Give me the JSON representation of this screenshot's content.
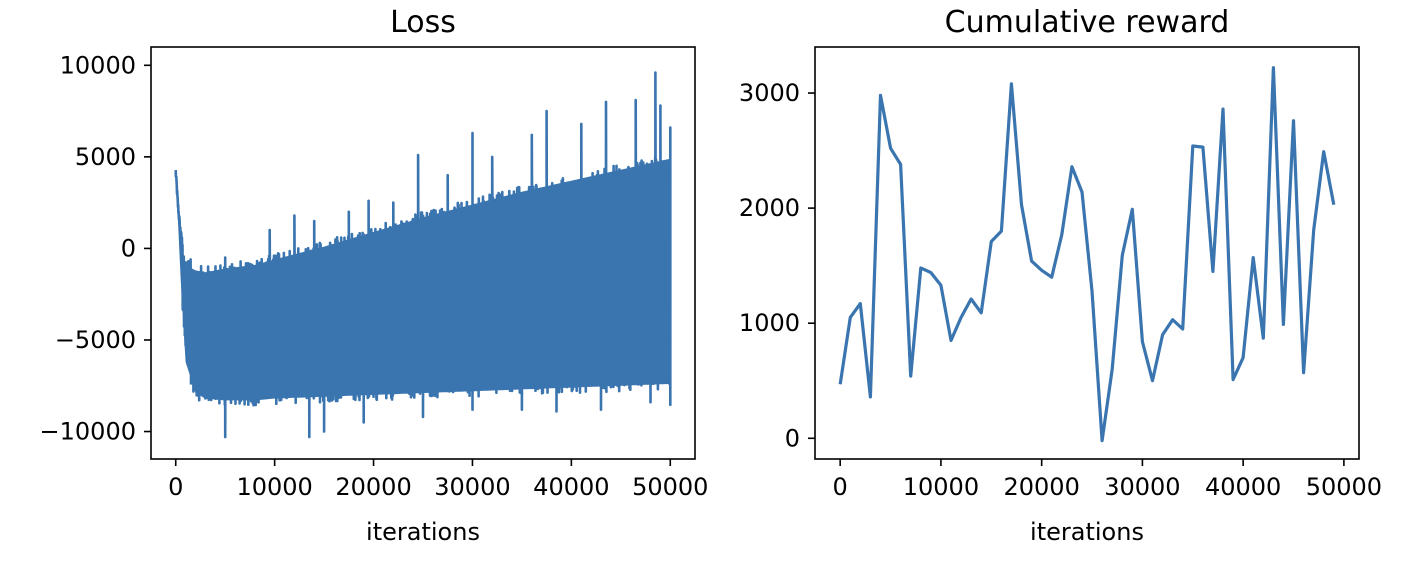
{
  "colors": {
    "line": "#3a75b0",
    "axis": "#000000",
    "background": "#ffffff"
  },
  "chart_data": [
    {
      "type": "line",
      "title": "Loss",
      "xlabel": "iterations",
      "ylabel": "",
      "xlim": [
        -2500,
        52500
      ],
      "ylim": [
        -11500,
        11000
      ],
      "xticks": [
        0,
        10000,
        20000,
        30000,
        40000,
        50000
      ],
      "xtick_labels": [
        "0",
        "10000",
        "20000",
        "30000",
        "40000",
        "50000"
      ],
      "yticks": [
        -10000,
        -5000,
        0,
        5000,
        10000
      ],
      "ytick_labels": [
        "−10000",
        "−5000",
        "0",
        "5000",
        "10000"
      ],
      "grid": false,
      "series": [
        {
          "x": [
            0,
            200,
            500,
            1000,
            2000,
            3000,
            5000,
            8000,
            10000,
            15000,
            20000,
            25000,
            30000,
            35000,
            40000,
            45000,
            50000
          ],
          "upper": [
            4200,
            2500,
            800,
            -600,
            -900,
            -1000,
            -800,
            -600,
            -300,
            400,
            1200,
            2000,
            2700,
            3400,
            4000,
            4600,
            5200
          ],
          "lower": [
            3500,
            1500,
            -2000,
            -6500,
            -8200,
            -8500,
            -8600,
            -8600,
            -8500,
            -8400,
            -8300,
            -8200,
            -8100,
            -8000,
            -7900,
            -7800,
            -7700
          ],
          "peaks": [
            [
              1500,
              -600
            ],
            [
              5000,
              -500
            ],
            [
              9500,
              1000
            ],
            [
              12000,
              1800
            ],
            [
              14000,
              1500
            ],
            [
              17500,
              2000
            ],
            [
              19500,
              2600
            ],
            [
              22000,
              2500
            ],
            [
              24500,
              5100
            ],
            [
              27500,
              4000
            ],
            [
              30000,
              6300
            ],
            [
              32000,
              5000
            ],
            [
              36000,
              6200
            ],
            [
              37500,
              7500
            ],
            [
              41000,
              6800
            ],
            [
              43500,
              8000
            ],
            [
              46500,
              8100
            ],
            [
              48500,
              9600
            ],
            [
              49000,
              7800
            ],
            [
              50000,
              6600
            ]
          ],
          "troughs": [
            [
              5000,
              -10300
            ],
            [
              13500,
              -10300
            ],
            [
              15000,
              -10000
            ],
            [
              19000,
              -9500
            ],
            [
              25000,
              -9200
            ],
            [
              30000,
              -8800
            ],
            [
              35000,
              -8800
            ],
            [
              38500,
              -8900
            ],
            [
              43000,
              -8800
            ],
            [
              48000,
              -8400
            ],
            [
              50000,
              -8600
            ]
          ]
        }
      ]
    },
    {
      "type": "line",
      "title": "Cumulative reward",
      "xlabel": "iterations",
      "ylabel": "",
      "xlim": [
        -2500,
        51500
      ],
      "ylim": [
        -180,
        3400
      ],
      "xticks": [
        0,
        10000,
        20000,
        30000,
        40000,
        50000
      ],
      "xtick_labels": [
        "0",
        "10000",
        "20000",
        "30000",
        "40000",
        "50000"
      ],
      "yticks": [
        0,
        1000,
        2000,
        3000
      ],
      "ytick_labels": [
        "0",
        "1000",
        "2000",
        "3000"
      ],
      "grid": false,
      "series": [
        {
          "x": [
            0,
            1000,
            2000,
            3000,
            4000,
            5000,
            6000,
            7000,
            8000,
            9000,
            10000,
            11000,
            12000,
            13000,
            14000,
            15000,
            16000,
            17000,
            18000,
            19000,
            20000,
            21000,
            22000,
            23000,
            24000,
            25000,
            26000,
            27000,
            28000,
            29000,
            30000,
            31000,
            32000,
            33000,
            34000,
            35000,
            36000,
            37000,
            38000,
            39000,
            40000,
            41000,
            42000,
            43000,
            44000,
            45000,
            46000,
            47000,
            48000,
            49000
          ],
          "y": [
            470,
            1050,
            1170,
            360,
            2980,
            2520,
            2380,
            540,
            1480,
            1440,
            1330,
            850,
            1050,
            1210,
            1090,
            1710,
            1800,
            3080,
            2030,
            1540,
            1460,
            1400,
            1770,
            2360,
            2140,
            1280,
            -20,
            600,
            1590,
            1990,
            840,
            500,
            900,
            1030,
            950,
            2540,
            2530,
            1450,
            2860,
            510,
            700,
            1570,
            870,
            3220,
            990,
            2760,
            570,
            1810,
            2490,
            2030
          ]
        }
      ]
    }
  ]
}
